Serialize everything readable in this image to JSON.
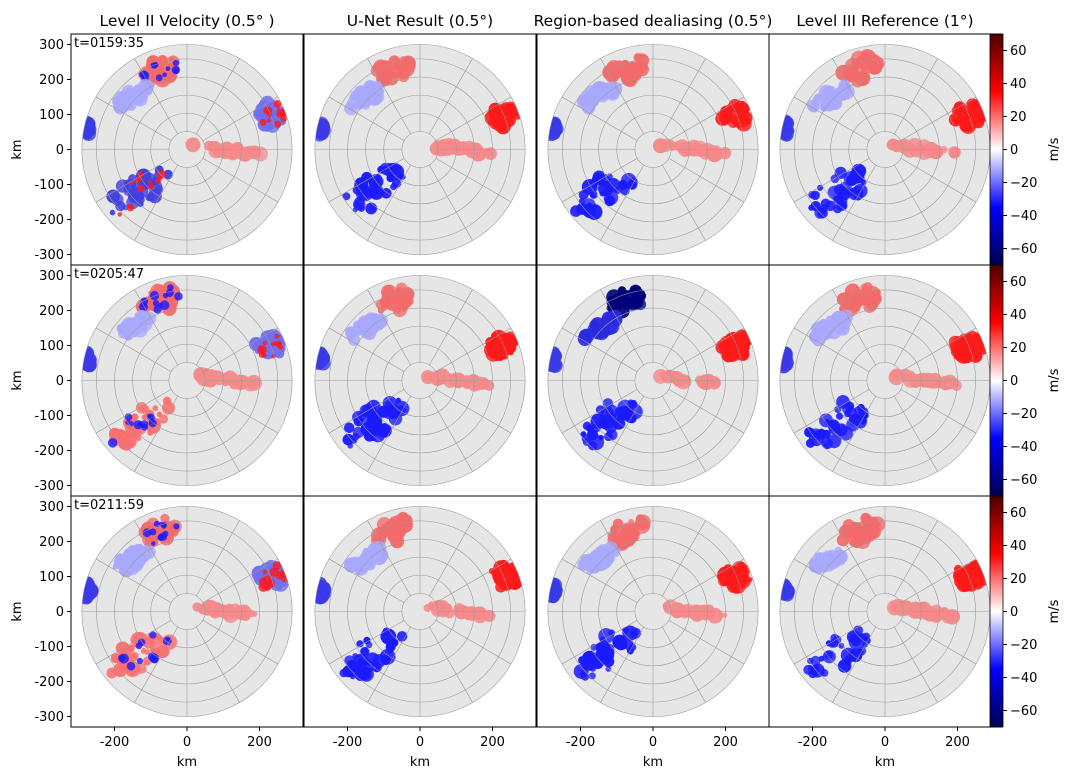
{
  "chart_data": {
    "type": "heatmap",
    "subtype": "radar-ppi-grid",
    "columns": [
      "Level II Velocity (0.5° )",
      "U-Net Result (0.5°)",
      "Region-based dealiasing (0.5°)",
      "Level III Reference (1°)"
    ],
    "rows": [
      {
        "time_label": "t=0159:35"
      },
      {
        "time_label": "t=0205:47"
      },
      {
        "time_label": "t=0211:59"
      }
    ],
    "xlabel": "km",
    "ylabel": "km",
    "xlim": [
      -320,
      320
    ],
    "ylim": [
      -330,
      330
    ],
    "xticks": [
      -200,
      0,
      200
    ],
    "xtick_labels": [
      "-200",
      "0",
      "200"
    ],
    "yticks": [
      300,
      200,
      100,
      0,
      -100,
      -200,
      -300
    ],
    "ytick_labels": [
      "300",
      "200",
      "100",
      "0",
      "-100",
      "-200",
      "-300"
    ],
    "radar_max_range_km": 290,
    "range_rings_km": [
      50,
      100,
      150,
      200,
      250,
      290
    ],
    "colorbar": {
      "label": "m/s",
      "range": [
        -70,
        70
      ],
      "ticks": [
        60,
        40,
        20,
        0,
        -20,
        -40,
        -60
      ],
      "tick_labels": [
        "60",
        "40",
        "20",
        "0",
        "−20",
        "−40",
        "−60"
      ],
      "colormap": "seismic"
    },
    "colors": {
      "background_disk": "#e6e6e6",
      "ring_color": "#9a9a9a",
      "red": "#ff1a1a",
      "blue": "#1a1aff",
      "dark_red": "#7a0000",
      "dark_blue": "#00007a"
    }
  }
}
